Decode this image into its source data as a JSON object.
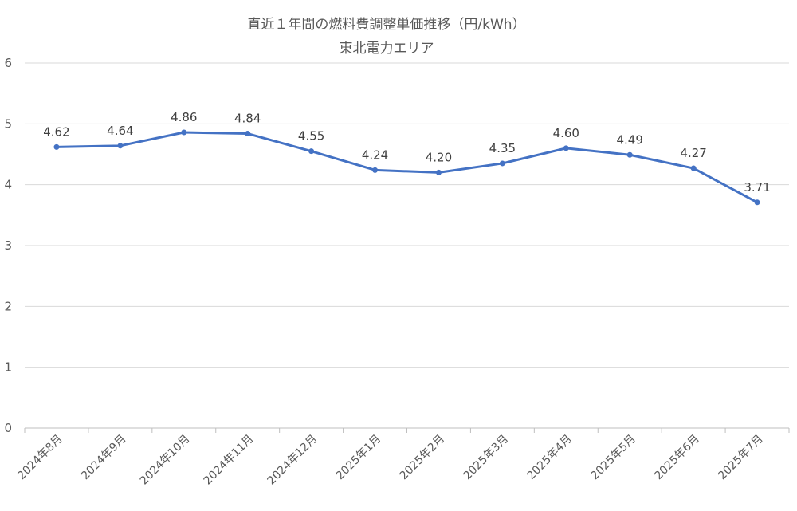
{
  "chart_data": {
    "type": "line",
    "title": "直近１年間の燃料費調整単価推移（円/kWh）",
    "subtitle": "東北電力エリア",
    "categories": [
      "2024年8月",
      "2024年9月",
      "2024年10月",
      "2024年11月",
      "2024年12月",
      "2025年1月",
      "2025年2月",
      "2025年3月",
      "2025年4月",
      "2025年5月",
      "2025年6月",
      "2025年7月"
    ],
    "series": [
      {
        "values": [
          4.62,
          4.64,
          4.86,
          4.84,
          4.55,
          4.24,
          4.2,
          4.35,
          4.6,
          4.49,
          4.27,
          3.71
        ],
        "labels": [
          "4.62",
          "4.64",
          "4.86",
          "4.84",
          "4.55",
          "4.24",
          "4.20",
          "4.35",
          "4.60",
          "4.49",
          "4.27",
          "3.71"
        ],
        "color": "#4472c4"
      }
    ],
    "yticks": [
      "0",
      "1",
      "2",
      "3",
      "4",
      "5",
      "6"
    ],
    "ylim": [
      0,
      6
    ],
    "grid": true,
    "legend": "none"
  }
}
